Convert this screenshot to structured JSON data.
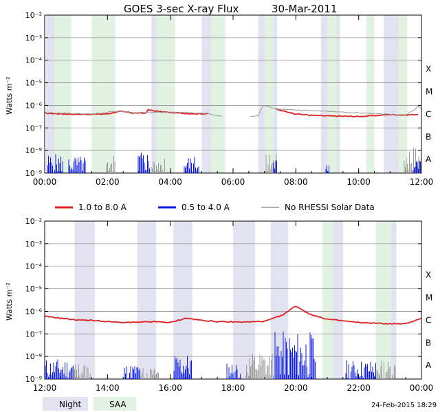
{
  "title": "GOES 3-sec X-ray Flux",
  "date": "30-Mar-2011",
  "footer_date": "24-Feb-2015 18:29",
  "ylabel": "Watts m⁻²",
  "colors": {
    "long": "#e02020",
    "short": "#0a18e8",
    "norhessi": "#999999",
    "night": "#e2e2f0",
    "saa": "#e2f2e2",
    "grid": "#909090"
  },
  "legend": [
    {
      "label": "1.0 to 8.0 A",
      "color": "#e02020"
    },
    {
      "label": "0.5 to 4.0 A",
      "color": "#0a18e8"
    },
    {
      "label": "No RHESSI Solar Data",
      "color": "#999999"
    }
  ],
  "bottom_legend": {
    "night": "Night",
    "saa": "SAA"
  },
  "chart_data": [
    {
      "type": "line",
      "panel": "top",
      "ylim": [
        1e-09,
        0.01
      ],
      "yscale": "log",
      "yticks": [
        "10⁻²",
        "10⁻³",
        "10⁻⁴",
        "10⁻⁵",
        "10⁻⁶",
        "10⁻⁷",
        "10⁻⁸",
        "10⁻⁹"
      ],
      "flare_classes": [
        "X",
        "M",
        "C",
        "B",
        "A"
      ],
      "xlim": [
        0,
        12
      ],
      "xtick_labels": [
        "00:00",
        "02:00",
        "04:00",
        "06:00",
        "08:00",
        "10:00",
        "12:00"
      ],
      "night": [
        [
          0.05,
          0.5
        ],
        [
          3.4,
          4.0
        ],
        [
          5.0,
          5.5
        ],
        [
          6.8,
          7.4
        ],
        [
          8.8,
          9.4
        ],
        [
          10.8,
          11.4
        ]
      ],
      "saa": [
        [
          0.3,
          0.85
        ],
        [
          1.5,
          2.25
        ],
        [
          3.55,
          4.15
        ],
        [
          5.3,
          5.75
        ],
        [
          7.0,
          7.3
        ],
        [
          9.0,
          9.3
        ],
        [
          10.25,
          10.5
        ],
        [
          11.25,
          11.55
        ]
      ],
      "series": [
        {
          "name": "1.0 to 8.0 A",
          "x": [
            0,
            0.5,
            1,
            1.5,
            2,
            2.4,
            2.8,
            3.2,
            3.3,
            3.6,
            4,
            4.5,
            5,
            5.2
          ],
          "values": [
            4.5e-07,
            4.2e-07,
            4e-07,
            4e-07,
            4.2e-07,
            5.4e-07,
            4.6e-07,
            4.5e-07,
            6.3e-07,
            5.4e-07,
            4.8e-07,
            4.4e-07,
            4.2e-07,
            4.4e-07
          ],
          "gaps": []
        },
        {
          "name": "1.0 to 8.0 A",
          "x": [
            7.35,
            7.5,
            8,
            8.5,
            9,
            9.5,
            10,
            10.5,
            11,
            11.5,
            11.9
          ],
          "values": [
            7e-07,
            6e-07,
            4.2e-07,
            3.6e-07,
            3.4e-07,
            3.3e-07,
            3.2e-07,
            3.5e-07,
            3.9e-07,
            3.7e-07,
            4e-07
          ],
          "gaps": []
        },
        {
          "name": "No RHESSI Solar Data",
          "x": [
            0,
            0.35,
            1.55,
            2.25,
            2.6,
            3.0,
            3.6,
            4.05,
            4.2,
            5.2,
            5.55,
            5.65
          ],
          "values": [
            4.7e-07,
            4.6e-07,
            4.1e-07,
            5.5e-07,
            5e-07,
            4.8e-07,
            5e-07,
            4.8e-07,
            4.9e-07,
            4.4e-07,
            3.4e-07,
            3.2e-07
          ],
          "gaps": []
        },
        {
          "name": "No RHESSI Solar Data",
          "x": [
            6.55,
            6.8,
            6.95,
            7.15,
            7.35,
            11.5,
            11.75,
            11.9,
            12.0
          ],
          "values": [
            3.3e-07,
            3.6e-07,
            1e-06,
            8.5e-07,
            7e-07,
            3.7e-07,
            6e-07,
            9e-07,
            7e-07
          ],
          "gaps": []
        }
      ]
    },
    {
      "type": "line",
      "panel": "bottom",
      "ylim": [
        1e-09,
        0.01
      ],
      "yscale": "log",
      "yticks": [
        "10⁻²",
        "10⁻³",
        "10⁻⁴",
        "10⁻⁵",
        "10⁻⁶",
        "10⁻⁷",
        "10⁻⁸",
        "10⁻⁹"
      ],
      "flare_classes": [
        "X",
        "M",
        "C",
        "B",
        "A"
      ],
      "xlim": [
        12,
        24
      ],
      "xtick_labels": [
        "12:00",
        "14:00",
        "16:00",
        "18:00",
        "20:00",
        "22:00",
        "00:00"
      ],
      "night": [
        [
          12.95,
          13.6
        ],
        [
          14.95,
          15.55
        ],
        [
          16.1,
          16.7
        ],
        [
          18.0,
          18.7
        ],
        [
          19.2,
          19.75
        ],
        [
          20.85,
          21.5
        ],
        [
          22.65,
          23.2
        ]
      ],
      "saa": [
        [
          20.85,
          21.2
        ],
        [
          22.55,
          23.05
        ]
      ],
      "series": [
        {
          "name": "1.0 to 8.0 A",
          "x": [
            12,
            12.5,
            13,
            13.5,
            14,
            14.5,
            15,
            15.5,
            16,
            16.5,
            17,
            17.5,
            18,
            18.5,
            19,
            19.3,
            19.6,
            19.85,
            20.0,
            20.2,
            20.4,
            20.7,
            21,
            21.5,
            22,
            22.5,
            23,
            23.5,
            24
          ],
          "values": [
            6e-07,
            5e-07,
            4.2e-07,
            4e-07,
            3.5e-07,
            3.2e-07,
            3.3e-07,
            3.5e-07,
            3.2e-07,
            5e-07,
            4e-07,
            3.5e-07,
            3.4e-07,
            3.4e-07,
            3.6e-07,
            5e-07,
            7e-07,
            1.3e-06,
            1.7e-06,
            1.2e-06,
            8e-07,
            5.8e-07,
            4.5e-07,
            3.8e-07,
            3.2e-07,
            3e-07,
            2.8e-07,
            2.8e-07,
            5e-07
          ],
          "gaps": []
        }
      ]
    }
  ]
}
